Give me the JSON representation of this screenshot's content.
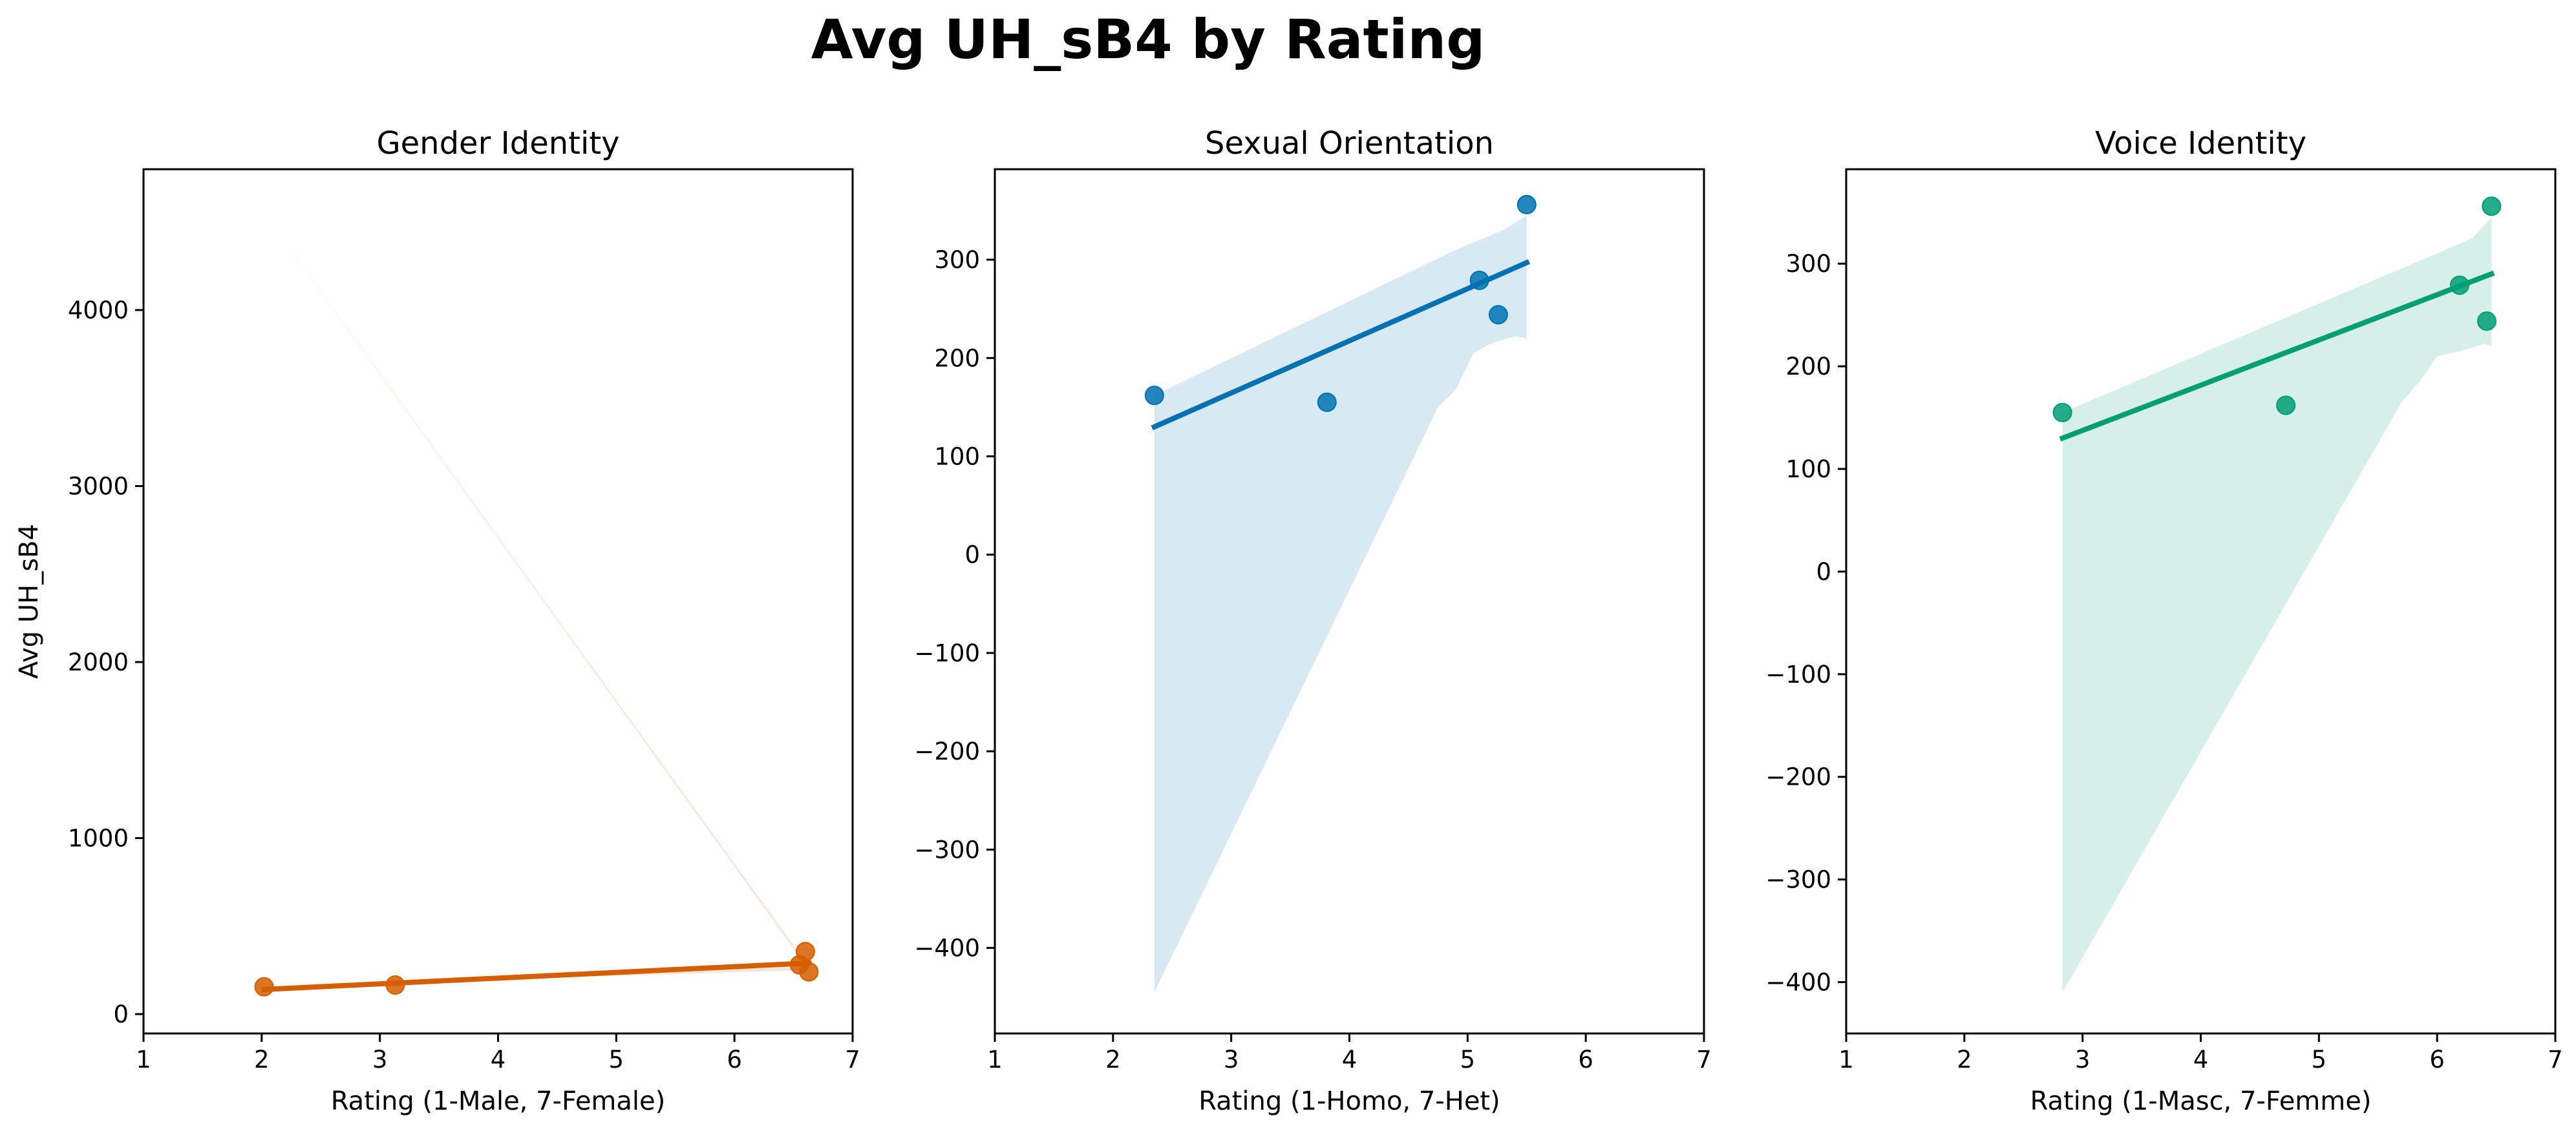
{
  "figure": {
    "title": "Avg UH_sB4 by Rating"
  },
  "chart_data": [
    {
      "type": "scatter",
      "title": "Gender Identity",
      "xlabel": "Rating (1-Male, 7-Female)",
      "ylabel": "Avg UH_sB4",
      "xlim": [
        1,
        7
      ],
      "ylim": [
        -110,
        4800
      ],
      "xticks": [
        1,
        2,
        3,
        4,
        5,
        6,
        7
      ],
      "yticks": [
        0,
        1000,
        2000,
        3000,
        4000
      ],
      "color": "#d55e00",
      "band_color": "#f9e5d8",
      "points": [
        {
          "x": 2.02,
          "y": 155
        },
        {
          "x": 3.13,
          "y": 165
        },
        {
          "x": 6.55,
          "y": 280
        },
        {
          "x": 6.6,
          "y": 355
        },
        {
          "x": 6.63,
          "y": 240
        }
      ],
      "regression": {
        "x": [
          2.02,
          6.63
        ],
        "y": [
          140,
          290
        ]
      },
      "confidence_band": {
        "upper": [
          {
            "x": 2.02,
            "y": 4550
          },
          {
            "x": 6.63,
            "y": 270
          }
        ],
        "lower": [
          {
            "x": 2.02,
            "y": 160
          },
          {
            "x": 6.63,
            "y": 250
          }
        ]
      },
      "grid": false,
      "legend": "none"
    },
    {
      "type": "scatter",
      "title": "Sexual Orientation",
      "xlabel": "Rating (1-Homo, 7-Het)",
      "ylabel": "",
      "xlim": [
        1,
        7
      ],
      "ylim": [
        -487,
        392
      ],
      "xticks": [
        1,
        2,
        3,
        4,
        5,
        6,
        7
      ],
      "yticks": [
        -400,
        -300,
        -200,
        -100,
        0,
        100,
        200,
        300
      ],
      "color": "#0072b2",
      "band_color": "#d9e9f3",
      "points": [
        {
          "x": 2.35,
          "y": 162
        },
        {
          "x": 3.81,
          "y": 155
        },
        {
          "x": 5.1,
          "y": 279
        },
        {
          "x": 5.26,
          "y": 244
        },
        {
          "x": 5.5,
          "y": 356
        }
      ],
      "regression": {
        "x": [
          2.35,
          5.5
        ],
        "y": [
          130,
          297
        ]
      },
      "confidence_band": {
        "upper": [
          {
            "x": 2.35,
            "y": 162
          },
          {
            "x": 4.9,
            "y": 310
          },
          {
            "x": 5.3,
            "y": 330
          },
          {
            "x": 5.5,
            "y": 345
          }
        ],
        "lower": [
          {
            "x": 5.5,
            "y": 220
          },
          {
            "x": 5.4,
            "y": 222
          },
          {
            "x": 5.2,
            "y": 215
          },
          {
            "x": 5.05,
            "y": 205
          },
          {
            "x": 4.9,
            "y": 168
          },
          {
            "x": 4.75,
            "y": 150
          },
          {
            "x": 2.35,
            "y": -445
          }
        ]
      },
      "grid": false,
      "legend": "none"
    },
    {
      "type": "scatter",
      "title": "Voice Identity",
      "xlabel": "Rating (1-Masc, 7-Femme)",
      "ylabel": "",
      "xlim": [
        1,
        7
      ],
      "ylim": [
        -450,
        392
      ],
      "xticks": [
        1,
        2,
        3,
        4,
        5,
        6,
        7
      ],
      "yticks": [
        -400,
        -300,
        -200,
        -100,
        0,
        100,
        200,
        300
      ],
      "color": "#009e73",
      "band_color": "#d6efe8",
      "points": [
        {
          "x": 2.83,
          "y": 155
        },
        {
          "x": 4.72,
          "y": 162
        },
        {
          "x": 6.19,
          "y": 279
        },
        {
          "x": 6.42,
          "y": 244
        },
        {
          "x": 6.46,
          "y": 356
        }
      ],
      "regression": {
        "x": [
          2.83,
          6.46
        ],
        "y": [
          130,
          290
        ]
      },
      "confidence_band": {
        "upper": [
          {
            "x": 2.83,
            "y": 155
          },
          {
            "x": 6.0,
            "y": 310
          },
          {
            "x": 6.3,
            "y": 325
          },
          {
            "x": 6.46,
            "y": 345
          }
        ],
        "lower": [
          {
            "x": 6.46,
            "y": 220
          },
          {
            "x": 6.4,
            "y": 222
          },
          {
            "x": 6.2,
            "y": 215
          },
          {
            "x": 6.0,
            "y": 210
          },
          {
            "x": 5.85,
            "y": 185
          },
          {
            "x": 5.7,
            "y": 165
          },
          {
            "x": 2.83,
            "y": -410
          }
        ]
      },
      "grid": false,
      "legend": "none"
    }
  ]
}
